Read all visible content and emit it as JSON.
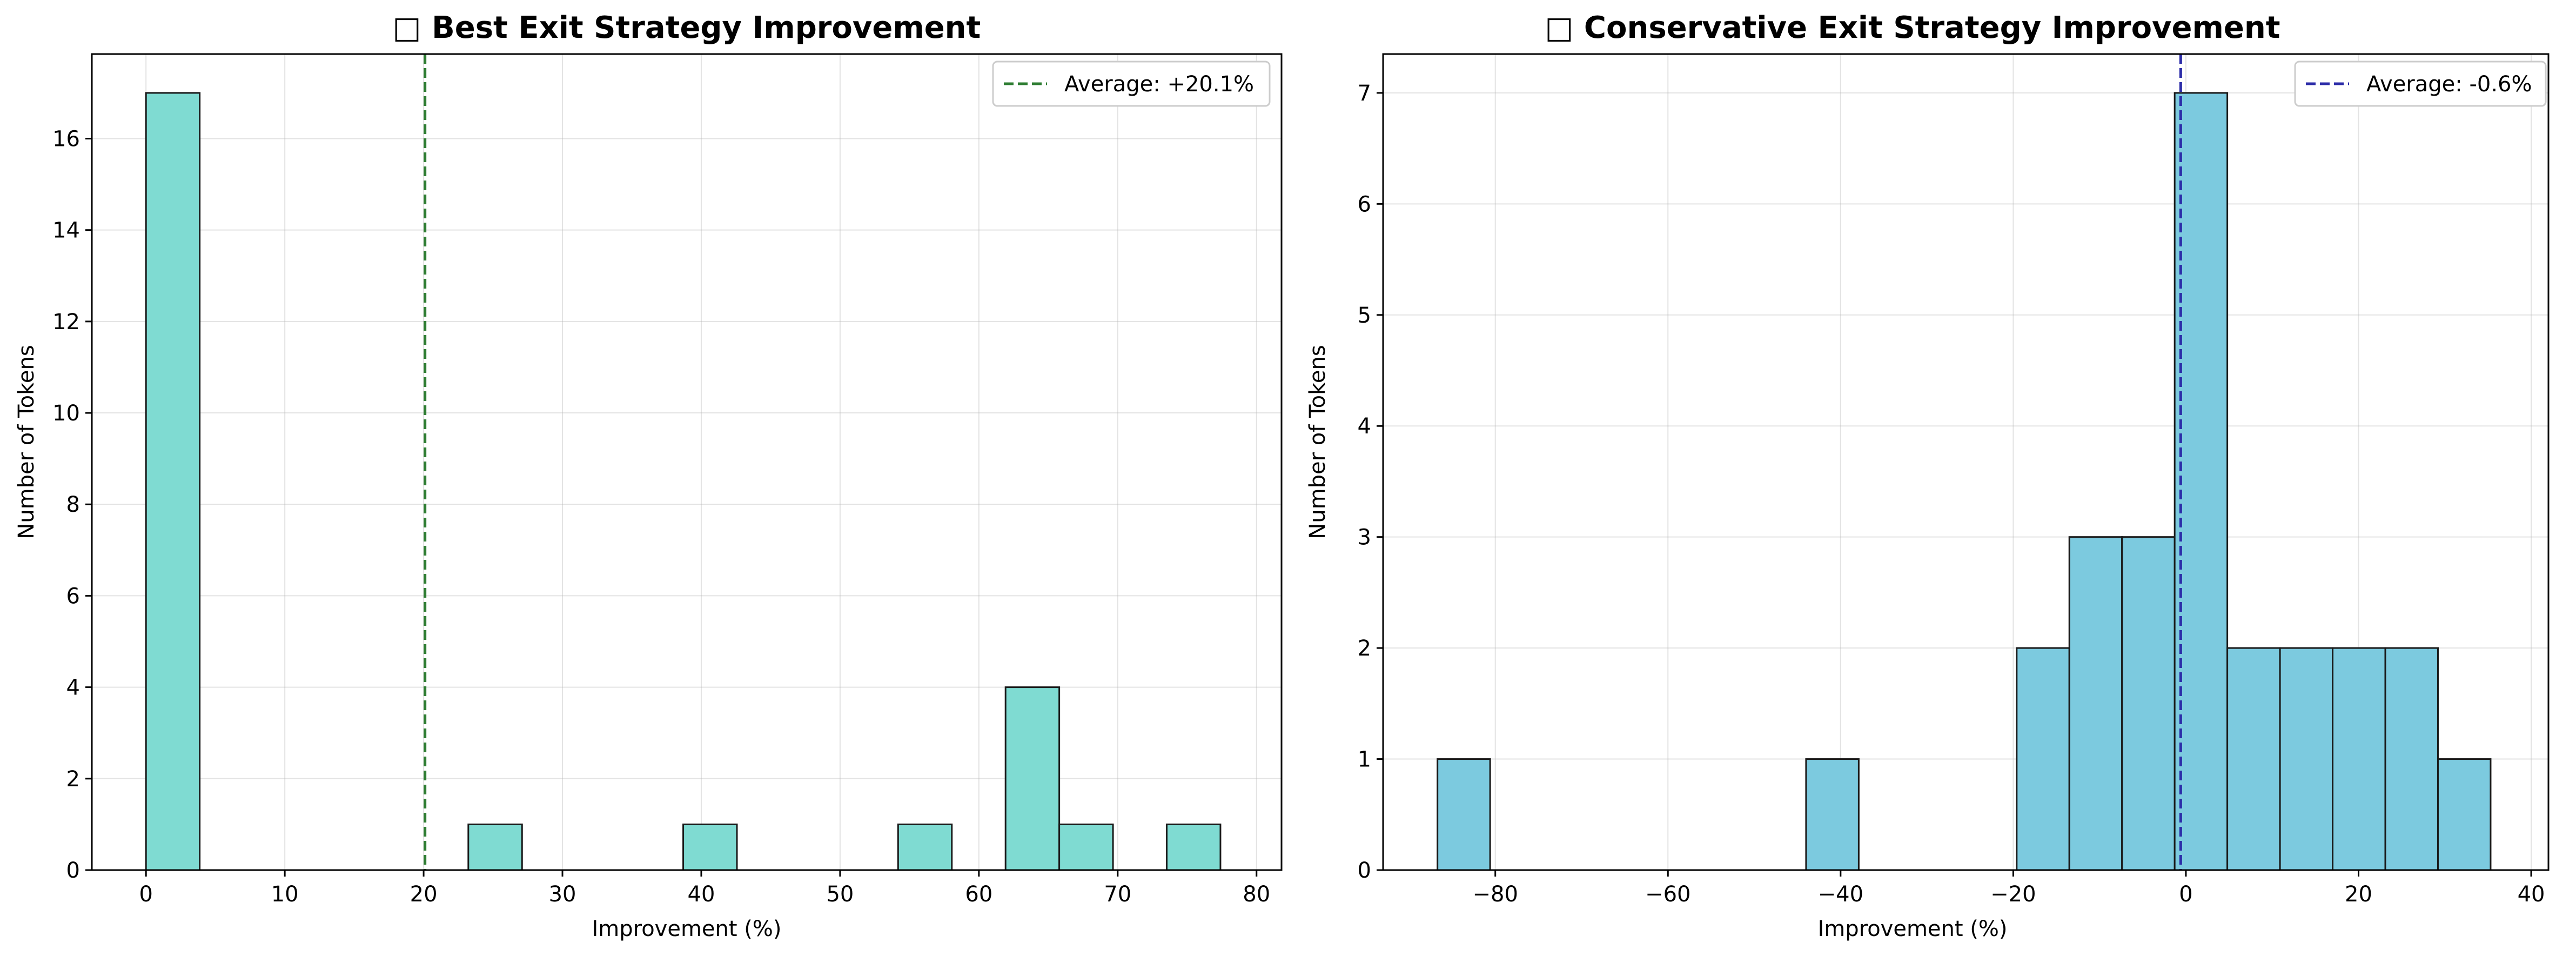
{
  "chart_data": [
    {
      "type": "bar",
      "title": "□ Best Exit Strategy Improvement",
      "xlabel": "Improvement (%)",
      "ylabel": "Number of Tokens",
      "xlim": [
        -3.9,
        81.8
      ],
      "ylim": [
        0,
        17.85
      ],
      "xticks": [
        0,
        10,
        20,
        30,
        40,
        50,
        60,
        70,
        80
      ],
      "yticks": [
        0,
        2,
        4,
        6,
        8,
        10,
        12,
        14,
        16
      ],
      "xtick_labels": [
        "0",
        "10",
        "20",
        "30",
        "40",
        "50",
        "60",
        "70",
        "80"
      ],
      "ytick_labels": [
        "0",
        "2",
        "4",
        "6",
        "8",
        "10",
        "12",
        "14",
        "16"
      ],
      "grid": true,
      "legend_position": "top-right",
      "bar_color": "#7fdbd2",
      "mean_line": {
        "x": 20.1,
        "label": "Average: +20.1%",
        "color": "#2e7d32"
      },
      "bins": [
        {
          "start": 0.0,
          "end": 3.87,
          "count": 17
        },
        {
          "start": 3.87,
          "end": 7.74,
          "count": 0
        },
        {
          "start": 7.74,
          "end": 11.61,
          "count": 0
        },
        {
          "start": 11.61,
          "end": 15.48,
          "count": 0
        },
        {
          "start": 15.48,
          "end": 19.35,
          "count": 0
        },
        {
          "start": 19.35,
          "end": 23.22,
          "count": 0
        },
        {
          "start": 23.22,
          "end": 27.09,
          "count": 1
        },
        {
          "start": 27.09,
          "end": 30.96,
          "count": 0
        },
        {
          "start": 30.96,
          "end": 34.83,
          "count": 0
        },
        {
          "start": 34.83,
          "end": 38.7,
          "count": 0
        },
        {
          "start": 38.7,
          "end": 42.57,
          "count": 1
        },
        {
          "start": 42.57,
          "end": 46.44,
          "count": 0
        },
        {
          "start": 46.44,
          "end": 50.31,
          "count": 0
        },
        {
          "start": 50.31,
          "end": 54.18,
          "count": 0
        },
        {
          "start": 54.18,
          "end": 58.05,
          "count": 1
        },
        {
          "start": 58.05,
          "end": 61.92,
          "count": 0
        },
        {
          "start": 61.92,
          "end": 65.79,
          "count": 4
        },
        {
          "start": 65.79,
          "end": 69.66,
          "count": 1
        },
        {
          "start": 69.66,
          "end": 73.53,
          "count": 0
        },
        {
          "start": 73.53,
          "end": 77.4,
          "count": 1
        }
      ]
    },
    {
      "type": "bar",
      "title": "□ Conservative Exit Strategy Improvement",
      "xlabel": "Improvement (%)",
      "ylabel": "Number of Tokens",
      "xlim": [
        -93.0,
        42.0
      ],
      "ylim": [
        0,
        7.35
      ],
      "xticks": [
        -80,
        -60,
        -40,
        -20,
        0,
        20,
        40
      ],
      "yticks": [
        0,
        1,
        2,
        3,
        4,
        5,
        6,
        7
      ],
      "xtick_labels": [
        "−80",
        "−60",
        "−40",
        "−20",
        "0",
        "20",
        "40"
      ],
      "ytick_labels": [
        "0",
        "1",
        "2",
        "3",
        "4",
        "5",
        "6",
        "7"
      ],
      "grid": true,
      "legend_position": "top-right",
      "bar_color": "#7ccadf",
      "mean_line": {
        "x": -0.6,
        "label": "Average: -0.6%",
        "color": "#2c2ca8"
      },
      "bins": [
        {
          "start": -86.7,
          "end": -80.6,
          "count": 1
        },
        {
          "start": -80.6,
          "end": -74.5,
          "count": 0
        },
        {
          "start": -74.5,
          "end": -68.4,
          "count": 0
        },
        {
          "start": -68.4,
          "end": -62.3,
          "count": 0
        },
        {
          "start": -62.3,
          "end": -56.2,
          "count": 0
        },
        {
          "start": -56.2,
          "end": -50.1,
          "count": 0
        },
        {
          "start": -50.1,
          "end": -44.0,
          "count": 0
        },
        {
          "start": -44.0,
          "end": -37.9,
          "count": 1
        },
        {
          "start": -37.9,
          "end": -31.8,
          "count": 0
        },
        {
          "start": -31.8,
          "end": -25.7,
          "count": 0
        },
        {
          "start": -25.7,
          "end": -19.6,
          "count": 0
        },
        {
          "start": -19.6,
          "end": -13.5,
          "count": 2
        },
        {
          "start": -13.5,
          "end": -7.4,
          "count": 3
        },
        {
          "start": -7.4,
          "end": -1.3,
          "count": 3
        },
        {
          "start": -1.3,
          "end": 4.8,
          "count": 7
        },
        {
          "start": 4.8,
          "end": 10.9,
          "count": 2
        },
        {
          "start": 10.9,
          "end": 17.0,
          "count": 2
        },
        {
          "start": 17.0,
          "end": 23.1,
          "count": 2
        },
        {
          "start": 23.1,
          "end": 29.2,
          "count": 2
        },
        {
          "start": 29.2,
          "end": 35.3,
          "count": 1
        }
      ]
    }
  ]
}
